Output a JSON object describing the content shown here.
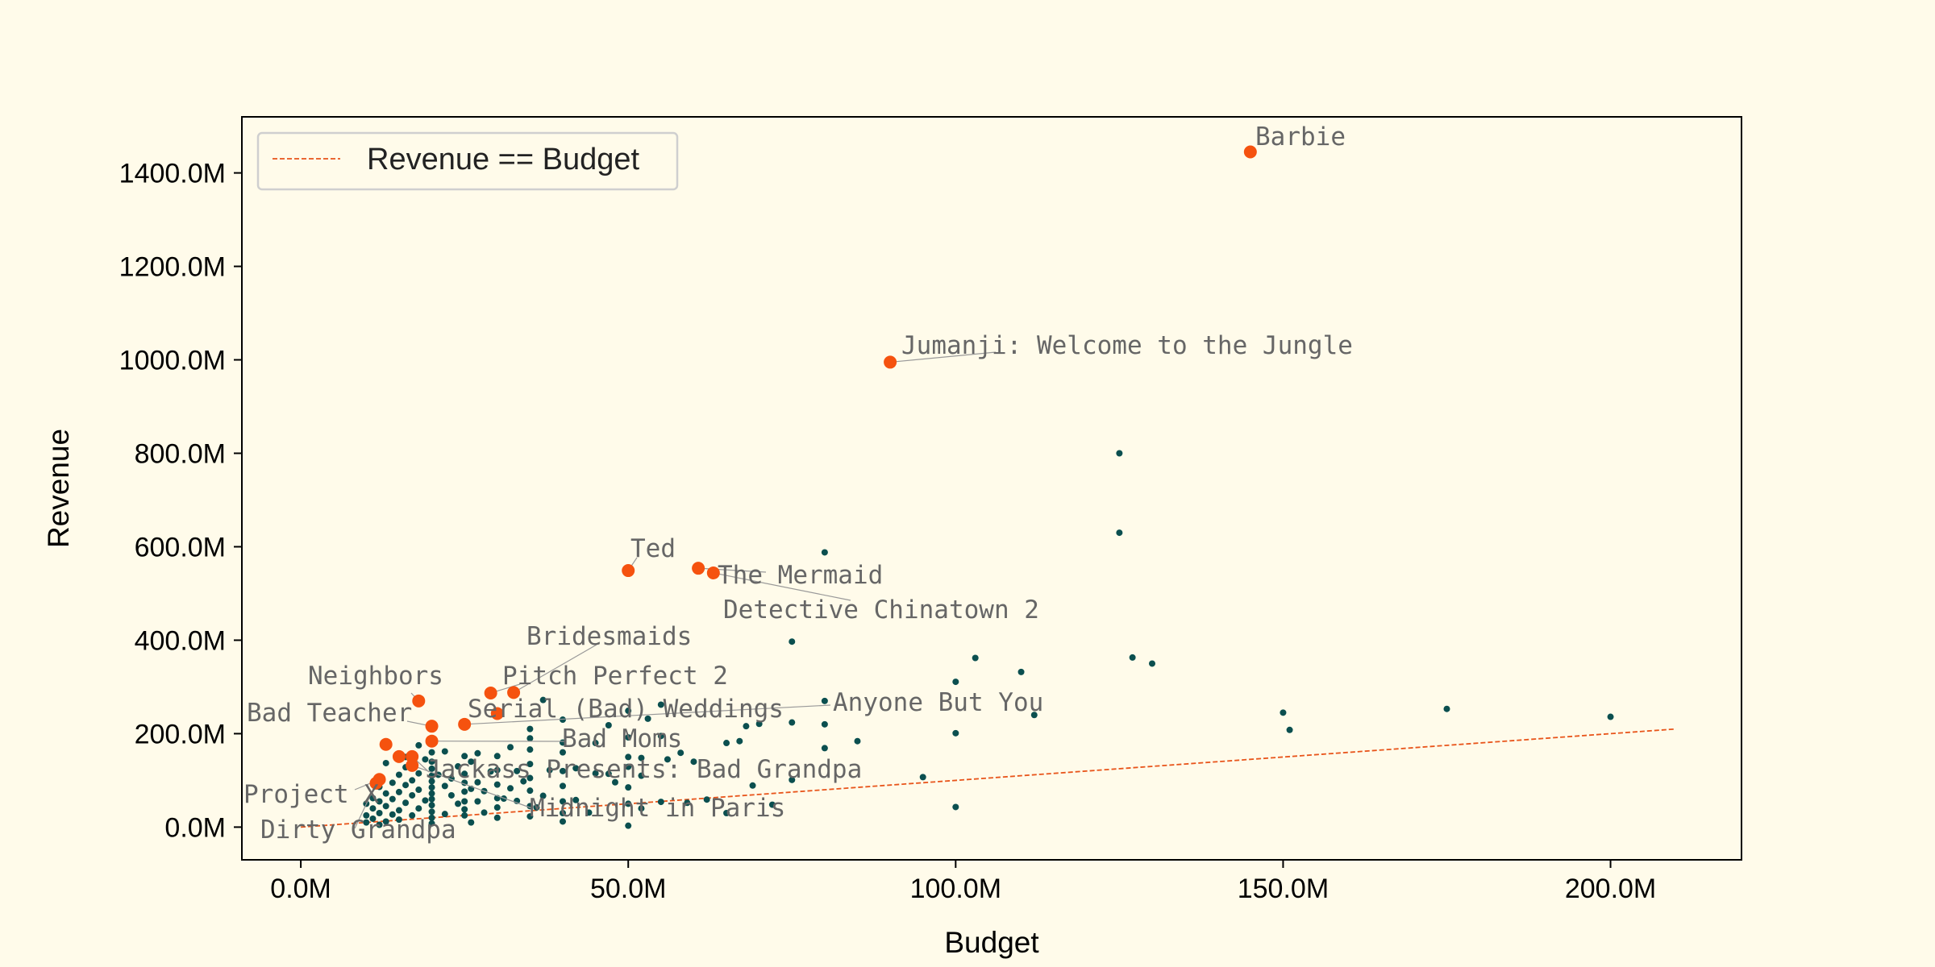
{
  "chart_data": {
    "type": "scatter",
    "title": "",
    "xlabel": "Budget",
    "ylabel": "Revenue",
    "xlim": [
      -9,
      220
    ],
    "ylim": [
      -70,
      1520
    ],
    "x_ticks": [
      0,
      50,
      100,
      150,
      200
    ],
    "x_tick_labels": [
      "0.0M",
      "50.0M",
      "100.0M",
      "150.0M",
      "200.0M"
    ],
    "y_ticks": [
      0,
      200,
      400,
      600,
      800,
      1000,
      1200,
      1400
    ],
    "y_tick_labels": [
      "0.0M",
      "200.0M",
      "400.0M",
      "600.0M",
      "800.0M",
      "1000.0M",
      "1200.0M",
      "1400.0M"
    ],
    "grid": false,
    "legend": {
      "position": "top-left",
      "entries": [
        "Revenue == Budget"
      ]
    },
    "reference_line": {
      "label": "Revenue == Budget",
      "x": [
        0,
        210
      ],
      "y": [
        0,
        210
      ],
      "color": "#e8541a",
      "style": "dashed"
    },
    "colors": {
      "background": "#fffbea",
      "points": "#0b4f4f",
      "highlight": "#f5520f",
      "annotation": "#666666",
      "leader": "#999999"
    },
    "highlighted": [
      {
        "name": "Barbie",
        "x": 145,
        "y": 1445
      },
      {
        "name": "Jumanji: Welcome to the Jungle",
        "x": 90,
        "y": 995
      },
      {
        "name": "Ted",
        "x": 50,
        "y": 549
      },
      {
        "name": "The Mermaid",
        "x": 60.7,
        "y": 554
      },
      {
        "name": "Detective Chinatown 2",
        "x": 63,
        "y": 544
      },
      {
        "name": "Bridesmaids",
        "x": 32.5,
        "y": 288
      },
      {
        "name": "Pitch Perfect 2",
        "x": 29,
        "y": 287
      },
      {
        "name": "Neighbors",
        "x": 18,
        "y": 270
      },
      {
        "name": "Serial (Bad) Weddings",
        "x": 30,
        "y": 243
      },
      {
        "name": "Anyone But You",
        "x": 25,
        "y": 220
      },
      {
        "name": "Bad Teacher",
        "x": 20,
        "y": 216
      },
      {
        "name": "Bad Moms",
        "x": 20,
        "y": 184
      },
      {
        "name": "Jackass Presents: Bad Grandpa",
        "x": 17,
        "y": 151
      },
      {
        "name": "Midnight in Paris",
        "x": 17,
        "y": 132
      },
      {
        "name": "Project X",
        "x": 12,
        "y": 102
      },
      {
        "name": "Dirty Grandpa",
        "x": 11.5,
        "y": 94
      },
      {
        "name": "",
        "x": 13,
        "y": 177
      },
      {
        "name": "",
        "x": 15,
        "y": 151
      }
    ],
    "points": [
      [
        80,
        588
      ],
      [
        75,
        397
      ],
      [
        125,
        800
      ],
      [
        125,
        630
      ],
      [
        127,
        363
      ],
      [
        130,
        350
      ],
      [
        110,
        332
      ],
      [
        103,
        362
      ],
      [
        100,
        311
      ],
      [
        112,
        240
      ],
      [
        150,
        245
      ],
      [
        151,
        208
      ],
      [
        175,
        253
      ],
      [
        200,
        236
      ],
      [
        100,
        201
      ],
      [
        95,
        107
      ],
      [
        100,
        43
      ],
      [
        85,
        184
      ],
      [
        80,
        169
      ],
      [
        80,
        220
      ],
      [
        80,
        270
      ],
      [
        75,
        224
      ],
      [
        75,
        101
      ],
      [
        72,
        48
      ],
      [
        70,
        221
      ],
      [
        69,
        89
      ],
      [
        68,
        216
      ],
      [
        67,
        184
      ],
      [
        65,
        180
      ],
      [
        65,
        30
      ],
      [
        62,
        59
      ],
      [
        60,
        140
      ],
      [
        59,
        52
      ],
      [
        58,
        159
      ],
      [
        56,
        145
      ],
      [
        55,
        262
      ],
      [
        55,
        195
      ],
      [
        55,
        54
      ],
      [
        53,
        232
      ],
      [
        52,
        148
      ],
      [
        52,
        110
      ],
      [
        52,
        40
      ],
      [
        50,
        249
      ],
      [
        50,
        192
      ],
      [
        50,
        150
      ],
      [
        50,
        129
      ],
      [
        50,
        85
      ],
      [
        50,
        50
      ],
      [
        50,
        3
      ],
      [
        48,
        96
      ],
      [
        47,
        218
      ],
      [
        47,
        114
      ],
      [
        45,
        180
      ],
      [
        45,
        115
      ],
      [
        44,
        31
      ],
      [
        42,
        126
      ],
      [
        42,
        58
      ],
      [
        40,
        230
      ],
      [
        40,
        181
      ],
      [
        40,
        160
      ],
      [
        40,
        120
      ],
      [
        40,
        88
      ],
      [
        40,
        55
      ],
      [
        40,
        30
      ],
      [
        40,
        12
      ],
      [
        38,
        122
      ],
      [
        37,
        272
      ],
      [
        37,
        67
      ],
      [
        36,
        42
      ],
      [
        35,
        210
      ],
      [
        35,
        190
      ],
      [
        35,
        166
      ],
      [
        35,
        135
      ],
      [
        35,
        105
      ],
      [
        35,
        78
      ],
      [
        35,
        45
      ],
      [
        35,
        23
      ],
      [
        34,
        98
      ],
      [
        33,
        120
      ],
      [
        33,
        56
      ],
      [
        32,
        171
      ],
      [
        32,
        83
      ],
      [
        31,
        61
      ],
      [
        30,
        152
      ],
      [
        30,
        122
      ],
      [
        30,
        91
      ],
      [
        30,
        62
      ],
      [
        30,
        42
      ],
      [
        30,
        20
      ],
      [
        29,
        119
      ],
      [
        28,
        77
      ],
      [
        28,
        31
      ],
      [
        27,
        158
      ],
      [
        27,
        96
      ],
      [
        27,
        55
      ],
      [
        26,
        140
      ],
      [
        26,
        82
      ],
      [
        26,
        10
      ],
      [
        25,
        152
      ],
      [
        25,
        114
      ],
      [
        25,
        95
      ],
      [
        25,
        76
      ],
      [
        25,
        55
      ],
      [
        25,
        38
      ],
      [
        25,
        25
      ],
      [
        24,
        130
      ],
      [
        24,
        50
      ],
      [
        23,
        104
      ],
      [
        23,
        68
      ],
      [
        22,
        162
      ],
      [
        22,
        88
      ],
      [
        22,
        28
      ],
      [
        21,
        112
      ],
      [
        20,
        160
      ],
      [
        20,
        140
      ],
      [
        20,
        125
      ],
      [
        20,
        110
      ],
      [
        20,
        98
      ],
      [
        20,
        85
      ],
      [
        20,
        72
      ],
      [
        20,
        60
      ],
      [
        20,
        47
      ],
      [
        20,
        33
      ],
      [
        20,
        20
      ],
      [
        20,
        8
      ],
      [
        19,
        145
      ],
      [
        19,
        57
      ],
      [
        18,
        175
      ],
      [
        18,
        115
      ],
      [
        18,
        80
      ],
      [
        18,
        40
      ],
      [
        17,
        100
      ],
      [
        17,
        68
      ],
      [
        17,
        25
      ],
      [
        16,
        150
      ],
      [
        16,
        128
      ],
      [
        16,
        90
      ],
      [
        16,
        52
      ],
      [
        15,
        112
      ],
      [
        15,
        75
      ],
      [
        15,
        36
      ],
      [
        15,
        16
      ],
      [
        14,
        95
      ],
      [
        14,
        60
      ],
      [
        14,
        27
      ],
      [
        13,
        137
      ],
      [
        13,
        72
      ],
      [
        13,
        45
      ],
      [
        13,
        12
      ],
      [
        12,
        86
      ],
      [
        12,
        55
      ],
      [
        12,
        30
      ],
      [
        12,
        5
      ],
      [
        11,
        62
      ],
      [
        11,
        40
      ],
      [
        11,
        18
      ],
      [
        10,
        50
      ],
      [
        10,
        25
      ],
      [
        10,
        10
      ]
    ]
  }
}
